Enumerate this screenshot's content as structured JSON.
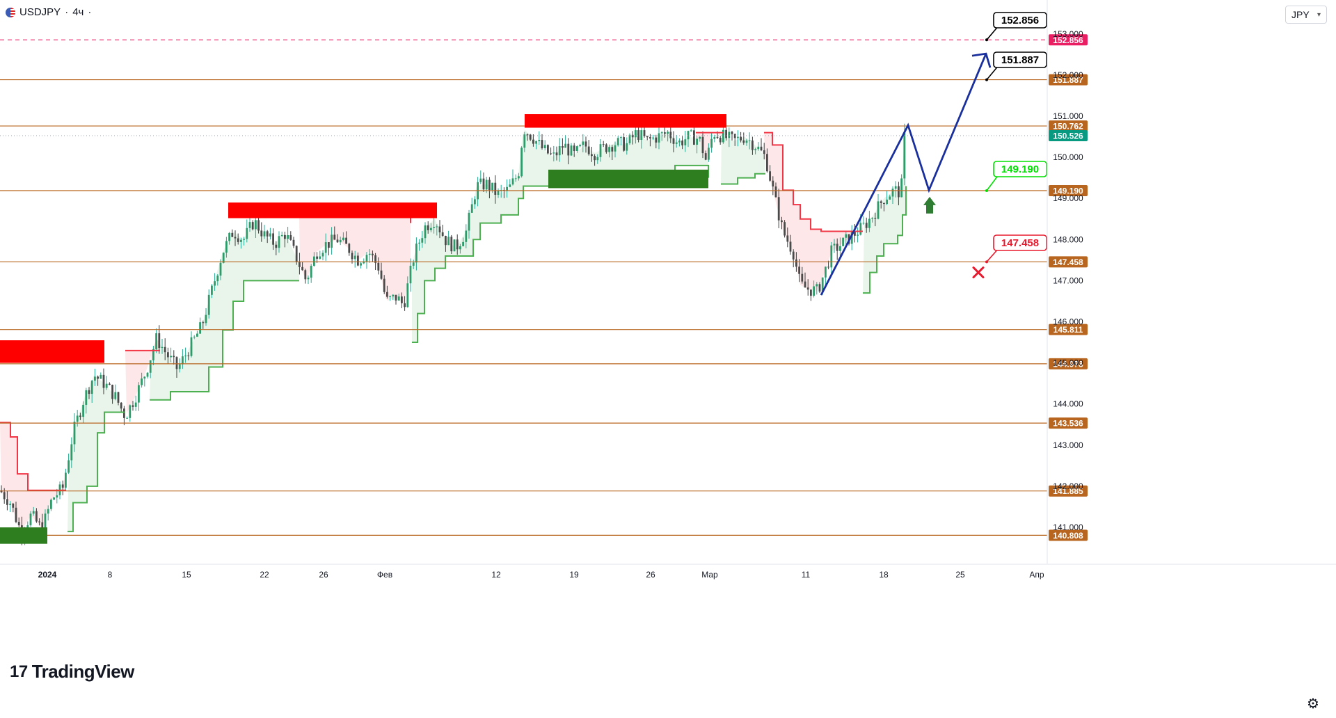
{
  "header": {
    "symbol": "USDJPY",
    "timeframe": "4ч",
    "separator": "·",
    "flag_icon": "us-flag-icon"
  },
  "currency_selector": {
    "value": "JPY",
    "icon": "chevron-down-icon"
  },
  "branding": {
    "name": "TradingView"
  },
  "settings_icon": "gear-icon",
  "chart_data": {
    "type": "candlestick",
    "instrument": "USDJPY",
    "interval": "4H",
    "price_scale": {
      "ylim": [
        140.4,
        153.6
      ],
      "ticks": [
        "141.000",
        "142.000",
        "143.000",
        "144.000",
        "145.000",
        "146.000",
        "147.000",
        "148.000",
        "149.000",
        "150.000",
        "151.000",
        "152.000",
        "153.000"
      ]
    },
    "time_axis": {
      "labels": [
        "2024",
        "8",
        "15",
        "22",
        "26",
        "Фев",
        "12",
        "19",
        "26",
        "Мар",
        "11",
        "18",
        "25",
        "Апр"
      ],
      "bold_label": "2024"
    },
    "current_price": {
      "value": "150.526",
      "color": "#089981"
    },
    "horizontal_levels": [
      {
        "value": 152.856,
        "label": "152.856",
        "style": "dashed",
        "color": "#e91e63"
      },
      {
        "value": 151.887,
        "label": "151.887",
        "style": "solid",
        "color": "#b8651f"
      },
      {
        "value": 150.762,
        "label": "150.762",
        "style": "solid",
        "color": "#b8651f"
      },
      {
        "value": 149.19,
        "label": "149.190",
        "style": "solid",
        "color": "#b8651f"
      },
      {
        "value": 147.458,
        "label": "147.458",
        "style": "solid",
        "color": "#b8651f"
      },
      {
        "value": 145.811,
        "label": "145.811",
        "style": "solid",
        "color": "#b8651f"
      },
      {
        "value": 144.978,
        "label": "144.978",
        "style": "solid",
        "color": "#b8651f"
      },
      {
        "value": 143.536,
        "label": "143.536",
        "style": "solid",
        "color": "#b8651f"
      },
      {
        "value": 141.885,
        "label": "141.885",
        "style": "solid",
        "color": "#b8651f"
      },
      {
        "value": 140.808,
        "label": "140.808",
        "style": "solid",
        "color": "#b8651f"
      }
    ],
    "callouts": [
      {
        "label": "152.856",
        "value": 152.856,
        "color": "#000000",
        "kind": "target"
      },
      {
        "label": "151.887",
        "value": 151.887,
        "color": "#000000",
        "kind": "target"
      },
      {
        "label": "149.190",
        "value": 149.19,
        "color": "#00e000",
        "kind": "entry"
      },
      {
        "label": "147.458",
        "value": 147.458,
        "color": "#e81a2e",
        "kind": "stop"
      }
    ],
    "zones": [
      {
        "type": "supply",
        "color": "#ff0000",
        "from": 145.0,
        "to": 145.55
      },
      {
        "type": "supply",
        "color": "#ff0000",
        "from": 148.52,
        "to": 148.9
      },
      {
        "type": "supply",
        "color": "#ff0000",
        "from": 150.72,
        "to": 151.05
      },
      {
        "type": "demand",
        "color": "#2e7d1f",
        "from": 140.6,
        "to": 141.0
      },
      {
        "type": "demand",
        "color": "#2e7d1f",
        "from": 149.25,
        "to": 149.7
      }
    ],
    "projection_path": [
      {
        "t": 1180,
        "price": 146.65
      },
      {
        "t": 1305,
        "price": 150.78
      },
      {
        "t": 1335,
        "price": 149.2
      },
      {
        "t": 1417,
        "price": 152.52
      }
    ],
    "marks": {
      "buy_arrow": {
        "t": 1336,
        "price": 148.7,
        "color": "#2e7d32"
      },
      "stop_cross": {
        "t": 1406,
        "price": 147.2,
        "color": "#e81a2e"
      }
    },
    "price_path": [
      [
        0,
        141.9
      ],
      [
        15,
        141.6
      ],
      [
        30,
        140.9
      ],
      [
        45,
        141.3
      ],
      [
        60,
        140.95
      ],
      [
        75,
        141.7
      ],
      [
        90,
        141.95
      ],
      [
        105,
        143.3
      ],
      [
        120,
        144.1
      ],
      [
        135,
        144.7
      ],
      [
        150,
        144.5
      ],
      [
        165,
        144.2
      ],
      [
        180,
        143.7
      ],
      [
        195,
        144.2
      ],
      [
        210,
        144.8
      ],
      [
        225,
        145.6
      ],
      [
        240,
        145.2
      ],
      [
        255,
        144.85
      ],
      [
        270,
        145.3
      ],
      [
        290,
        145.9
      ],
      [
        305,
        146.8
      ],
      [
        320,
        147.7
      ],
      [
        335,
        148.2
      ],
      [
        350,
        148.0
      ],
      [
        365,
        148.45
      ],
      [
        380,
        148.1
      ],
      [
        395,
        147.9
      ],
      [
        410,
        148.15
      ],
      [
        425,
        147.6
      ],
      [
        440,
        147.0
      ],
      [
        455,
        147.7
      ],
      [
        470,
        147.9
      ],
      [
        485,
        148.0
      ],
      [
        500,
        147.8
      ],
      [
        515,
        147.5
      ],
      [
        530,
        147.7
      ],
      [
        545,
        147.3
      ],
      [
        555,
        146.5
      ],
      [
        570,
        146.6
      ],
      [
        580,
        146.4
      ],
      [
        595,
        147.6
      ],
      [
        610,
        148.3
      ],
      [
        625,
        148.5
      ],
      [
        640,
        148.0
      ],
      [
        655,
        147.8
      ],
      [
        670,
        148.2
      ],
      [
        685,
        149.3
      ],
      [
        700,
        149.35
      ],
      [
        715,
        149.1
      ],
      [
        730,
        149.2
      ],
      [
        745,
        149.6
      ],
      [
        752,
        150.7
      ],
      [
        765,
        150.5
      ],
      [
        780,
        150.2
      ],
      [
        795,
        150.0
      ],
      [
        810,
        150.3
      ],
      [
        825,
        150.05
      ],
      [
        840,
        150.3
      ],
      [
        855,
        150.1
      ],
      [
        870,
        150.25
      ],
      [
        885,
        150.35
      ],
      [
        900,
        150.3
      ],
      [
        915,
        150.6
      ],
      [
        930,
        150.4
      ],
      [
        945,
        150.5
      ],
      [
        960,
        150.6
      ],
      [
        975,
        150.35
      ],
      [
        990,
        150.5
      ],
      [
        1005,
        150.45
      ],
      [
        1015,
        149.9
      ],
      [
        1025,
        150.6
      ],
      [
        1040,
        150.5
      ],
      [
        1055,
        150.4
      ],
      [
        1070,
        150.5
      ],
      [
        1085,
        150.3
      ],
      [
        1100,
        150.0
      ],
      [
        1115,
        148.9
      ],
      [
        1125,
        148.2
      ],
      [
        1140,
        147.7
      ],
      [
        1150,
        146.9
      ],
      [
        1160,
        146.8
      ],
      [
        1175,
        146.75
      ],
      [
        1185,
        147.2
      ],
      [
        1195,
        147.7
      ],
      [
        1210,
        147.9
      ],
      [
        1225,
        148.1
      ],
      [
        1240,
        148.3
      ],
      [
        1255,
        148.6
      ],
      [
        1270,
        149.0
      ],
      [
        1285,
        149.2
      ],
      [
        1295,
        149.15
      ],
      [
        1300,
        150.55
      ]
    ],
    "trailing_stop": {
      "bull_color": "#4caf50",
      "bear_color": "#f23645",
      "segments": [
        {
          "side": "bear",
          "points": [
            [
              0,
              143.55
            ],
            [
              15,
              143.2
            ],
            [
              25,
              142.3
            ],
            [
              40,
              141.9
            ],
            [
              95,
              141.9
            ]
          ]
        },
        {
          "side": "bull",
          "points": [
            [
              97,
              140.9
            ],
            [
              105,
              141.6
            ],
            [
              125,
              142.0
            ],
            [
              140,
              143.3
            ],
            [
              150,
              143.8
            ],
            [
              180,
              143.8
            ]
          ]
        },
        {
          "side": "bear",
          "points": [
            [
              180,
              145.3
            ],
            [
              230,
              145.3
            ]
          ]
        },
        {
          "side": "bull",
          "points": [
            [
              215,
              144.1
            ],
            [
              245,
              144.3
            ],
            [
              285,
              144.3
            ],
            [
              300,
              144.9
            ],
            [
              320,
              145.8
            ],
            [
              335,
              146.5
            ],
            [
              350,
              147.0
            ],
            [
              430,
              147.0
            ]
          ]
        },
        {
          "side": "bear",
          "points": [
            [
              430,
              148.6
            ],
            [
              575,
              148.6
            ],
            [
              590,
              148.4
            ]
          ]
        },
        {
          "side": "bull",
          "points": [
            [
              592,
              145.5
            ],
            [
              600,
              146.2
            ],
            [
              610,
              147.0
            ],
            [
              625,
              147.3
            ],
            [
              640,
              147.6
            ],
            [
              675,
              147.6
            ],
            [
              680,
              148.0
            ],
            [
              690,
              148.4
            ],
            [
              720,
              148.6
            ],
            [
              745,
              149.0
            ],
            [
              752,
              149.3
            ],
            [
              820,
              149.3
            ],
            [
              880,
              149.4
            ],
            [
              915,
              149.6
            ],
            [
              970,
              149.8
            ],
            [
              1005,
              149.8
            ],
            [
              1018,
              149.5
            ]
          ]
        },
        {
          "side": "bear",
          "points": [
            [
              1000,
              150.6
            ],
            [
              1040,
              150.6
            ]
          ]
        },
        {
          "side": "bull",
          "points": [
            [
              1036,
              149.35
            ],
            [
              1060,
              149.5
            ],
            [
              1085,
              149.6
            ],
            [
              1100,
              149.6
            ]
          ]
        },
        {
          "side": "bear",
          "points": [
            [
              1098,
              150.6
            ],
            [
              1110,
              150.3
            ],
            [
              1125,
              149.2
            ],
            [
              1140,
              148.85
            ],
            [
              1150,
              148.5
            ],
            [
              1165,
              148.25
            ],
            [
              1180,
              148.2
            ],
            [
              1240,
              148.2
            ]
          ]
        },
        {
          "side": "bull",
          "points": [
            [
              1240,
              146.7
            ],
            [
              1250,
              147.2
            ],
            [
              1260,
              147.6
            ],
            [
              1270,
              147.9
            ],
            [
              1290,
              148.1
            ],
            [
              1297,
              148.6
            ],
            [
              1302,
              149.3
            ]
          ]
        }
      ]
    }
  }
}
